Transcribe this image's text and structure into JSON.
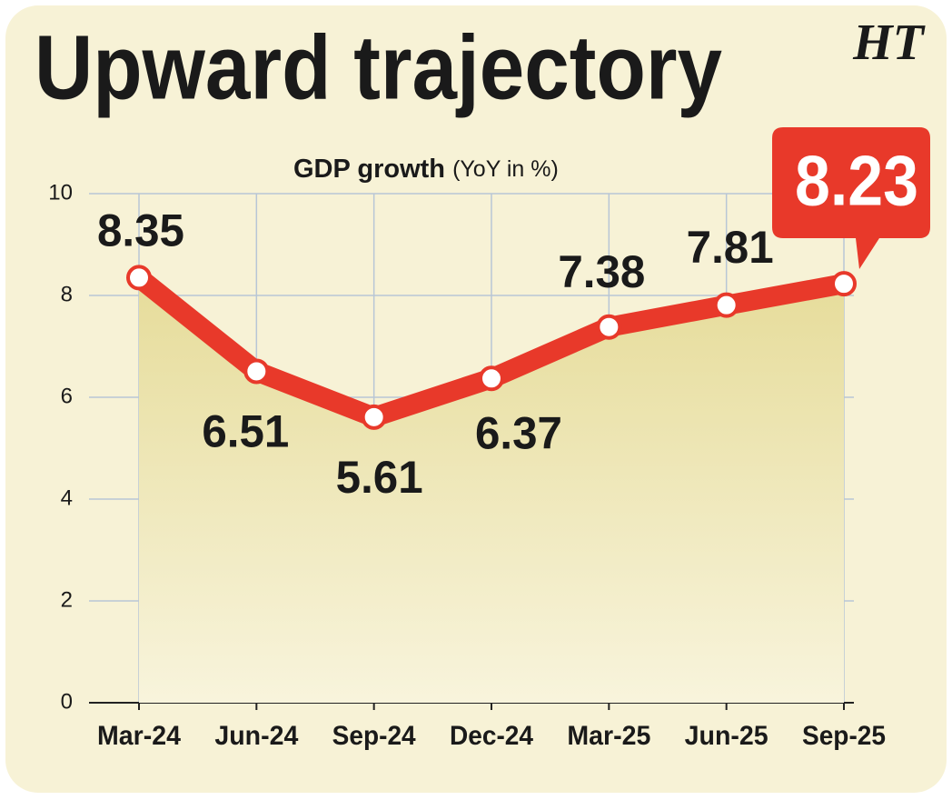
{
  "chart_data": {
    "type": "line",
    "title": "Upward trajectory",
    "logo": "HT",
    "y_label": "GDP growth",
    "y_label_unit": "(YoY in %)",
    "categories": [
      "Mar-24",
      "Jun-24",
      "Sep-24",
      "Dec-24",
      "Mar-25",
      "Jun-25",
      "Sep-25"
    ],
    "values": [
      8.35,
      6.51,
      5.61,
      6.37,
      7.38,
      7.81,
      8.23
    ],
    "color": "#e8392a",
    "ylim": [
      0,
      10
    ],
    "yticks": [
      0,
      2,
      4,
      6,
      8,
      10
    ],
    "grid": true
  }
}
